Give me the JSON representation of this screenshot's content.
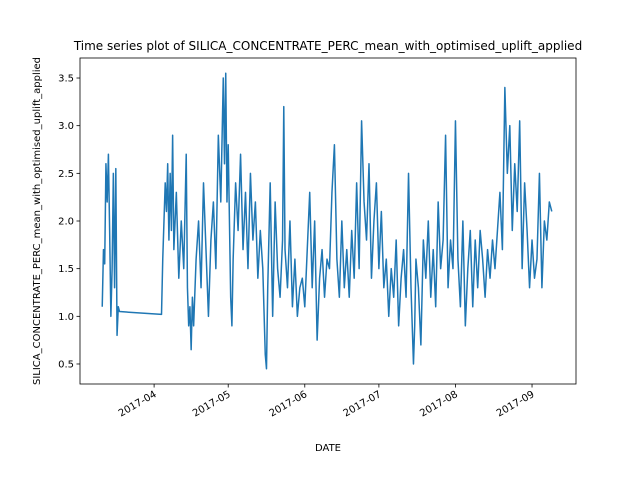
{
  "chart_data": {
    "type": "line",
    "title": "Time series plot of SILICA_CONCENTRATE_PERC_mean_with_optimised_uplift_applied",
    "xlabel": "DATE",
    "ylabel": "SILICA_CONCENTRATE_PERC_mean_with_optimised_uplift_applied",
    "color": "#1f77b4",
    "grid": false,
    "x": [
      69,
      69.5,
      70,
      70.5,
      71,
      71.5,
      72,
      72.5,
      73,
      73.5,
      74,
      74.5,
      75,
      75.5,
      76,
      93,
      93.5,
      94,
      94.5,
      95,
      95.5,
      96,
      96.5,
      97,
      97.5,
      98,
      99,
      100,
      101,
      102,
      103,
      103.5,
      104,
      104.5,
      105,
      105.5,
      106,
      107,
      108,
      109,
      110,
      111,
      112,
      113,
      114,
      115,
      116,
      117,
      118,
      118.5,
      119,
      119.5,
      120,
      121,
      121.5,
      122,
      123,
      124,
      125,
      126,
      127,
      128,
      129,
      130,
      131,
      132,
      133,
      134,
      135,
      135.5,
      136,
      137,
      138,
      139,
      140,
      141,
      142,
      142.5,
      143,
      144,
      145,
      146,
      147,
      148,
      149,
      150,
      151,
      152,
      153,
      154,
      155,
      156,
      157,
      158,
      159,
      160,
      161,
      162,
      163,
      164,
      165,
      166,
      167,
      168,
      169,
      170,
      171,
      172,
      173,
      174,
      175,
      176,
      177,
      178,
      179,
      180,
      181,
      182,
      183,
      184,
      185,
      186,
      187,
      188,
      189,
      190,
      191,
      192,
      193,
      194,
      195,
      195.5,
      196,
      197,
      198,
      199,
      200,
      201,
      202,
      203,
      204,
      205,
      206,
      207,
      208,
      209,
      210,
      211,
      212,
      213,
      214,
      215,
      216,
      217,
      218,
      219,
      220,
      221,
      222,
      223,
      224,
      225,
      226,
      227,
      228,
      229,
      230,
      231,
      232,
      233,
      234,
      235,
      236,
      237,
      238,
      239,
      240,
      241,
      242,
      243,
      244,
      245,
      246,
      247,
      248,
      249,
      250,
      251
    ],
    "values": [
      1.1,
      1.7,
      1.55,
      2.6,
      2.2,
      2.7,
      1.9,
      1.0,
      1.5,
      2.5,
      1.3,
      2.55,
      0.8,
      1.1,
      1.05,
      1.02,
      1.6,
      2.0,
      2.4,
      2.1,
      2.6,
      1.8,
      2.5,
      1.9,
      2.9,
      1.7,
      2.3,
      1.4,
      2.0,
      1.5,
      2.7,
      1.3,
      0.9,
      1.1,
      0.65,
      1.2,
      0.9,
      1.6,
      2.0,
      1.3,
      2.4,
      1.7,
      1.0,
      1.8,
      2.2,
      1.5,
      2.9,
      2.2,
      3.5,
      2.6,
      3.55,
      2.2,
      2.8,
      1.2,
      0.9,
      1.6,
      2.4,
      1.9,
      2.7,
      1.7,
      2.3,
      1.5,
      2.5,
      1.8,
      2.2,
      1.4,
      1.9,
      1.5,
      0.6,
      0.45,
      1.3,
      2.4,
      1.0,
      2.2,
      1.5,
      1.2,
      1.8,
      3.2,
      1.7,
      1.3,
      2.0,
      1.1,
      1.6,
      1.0,
      1.3,
      1.4,
      1.1,
      1.7,
      2.3,
      1.3,
      2.0,
      0.75,
      1.4,
      1.7,
      1.2,
      1.6,
      1.5,
      2.3,
      2.8,
      1.6,
      1.2,
      2.0,
      1.3,
      1.7,
      1.2,
      1.9,
      1.4,
      2.4,
      1.5,
      3.05,
      2.2,
      1.8,
      2.6,
      1.4,
      2.0,
      2.4,
      1.5,
      2.1,
      1.3,
      1.6,
      1.0,
      1.5,
      1.2,
      1.8,
      0.9,
      1.4,
      1.7,
      1.2,
      2.5,
      1.3,
      0.5,
      0.9,
      1.6,
      1.3,
      0.7,
      1.8,
      1.4,
      2.0,
      1.2,
      1.7,
      1.1,
      2.2,
      1.5,
      1.8,
      2.9,
      1.3,
      1.8,
      1.5,
      3.05,
      1.6,
      1.1,
      2.0,
      0.9,
      1.5,
      1.9,
      1.1,
      1.8,
      1.3,
      1.9,
      1.6,
      1.2,
      1.7,
      1.4,
      1.8,
      1.5,
      1.9,
      2.3,
      1.7,
      3.4,
      2.5,
      3.0,
      1.9,
      2.6,
      2.1,
      3.05,
      1.5,
      2.4,
      1.9,
      1.3,
      1.8,
      1.4,
      1.6,
      2.5,
      1.3,
      2.0,
      1.8,
      2.2,
      2.1
    ],
    "xlim": [
      60,
      260.8
    ],
    "xticks": [
      {
        "value": 90,
        "label": "2017-04"
      },
      {
        "value": 120,
        "label": "2017-05"
      },
      {
        "value": 151,
        "label": "2017-06"
      },
      {
        "value": 181,
        "label": "2017-07"
      },
      {
        "value": 212,
        "label": "2017-08"
      },
      {
        "value": 243,
        "label": "2017-09"
      }
    ],
    "ylim": [
      0.29,
      3.71
    ],
    "yticks": [
      0.5,
      {
        "value": 1,
        "label": "1.0"
      },
      1.5,
      {
        "value": 2,
        "label": "2.0"
      },
      2.5,
      {
        "value": 3,
        "label": "3.0"
      },
      3.5
    ]
  }
}
